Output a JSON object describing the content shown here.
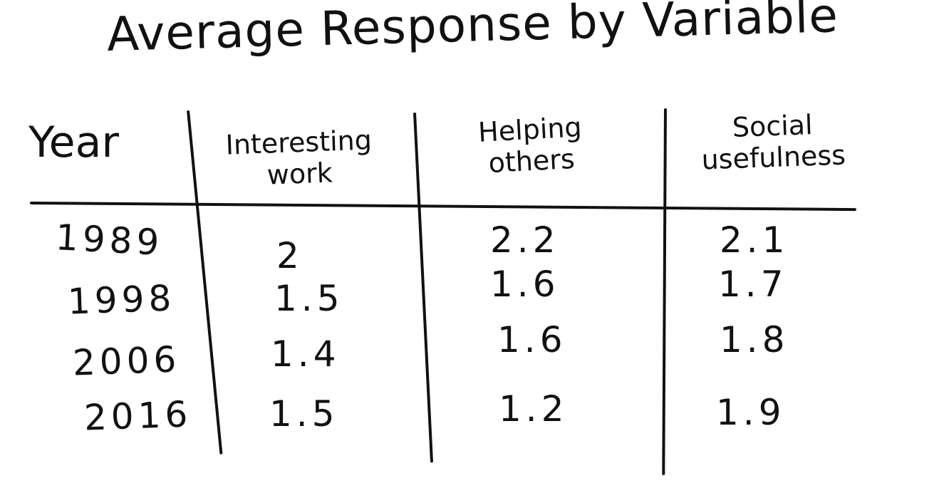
{
  "title": "Average Response by Variable",
  "headers": {
    "year": "Year",
    "interesting_work": {
      "line1": "Interesting",
      "line2": "work"
    },
    "helping_others": {
      "line1": "Helping",
      "line2": "others"
    },
    "social_usefulness": {
      "line1": "Social",
      "line2": "usefulness"
    }
  },
  "rows": [
    {
      "year": "1989",
      "interesting_work": "2",
      "helping_others": "2.2",
      "social_usefulness": "2.1"
    },
    {
      "year": "1998",
      "interesting_work": "1.5",
      "helping_others": "1.6",
      "social_usefulness": "1.7"
    },
    {
      "year": "2006",
      "interesting_work": "1.4",
      "helping_others": "1.6",
      "social_usefulness": "1.8"
    },
    {
      "year": "2016",
      "interesting_work": "1.5",
      "helping_others": "1.2",
      "social_usefulness": "1.9"
    }
  ]
}
